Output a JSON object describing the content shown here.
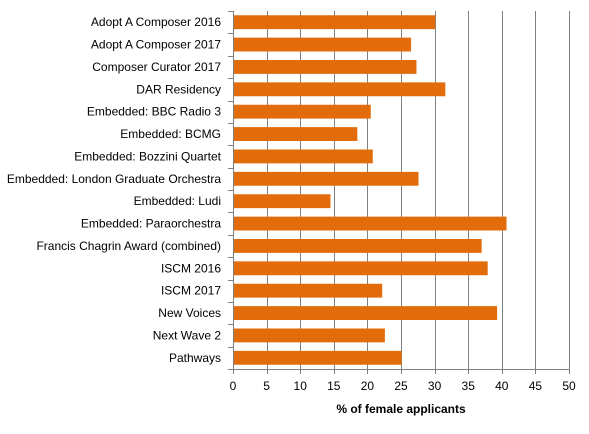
{
  "chart_data": {
    "type": "bar",
    "orientation": "horizontal",
    "categories": [
      "Adopt A Composer 2016",
      "Adopt A Composer 2017",
      "Composer Curator 2017",
      "DAR Residency",
      "Embedded: BBC Radio 3",
      "Embedded: BCMG",
      "Embedded: Bozzini Quartet",
      "Embedded: London Graduate Orchestra",
      "Embedded: Ludi",
      "Embedded: Paraorchestra",
      "Francis Chagrin Award (combined)",
      "ISCM 2016",
      "ISCM 2017",
      "New Voices",
      "Next Wave 2",
      "Pathways"
    ],
    "values": [
      30.1,
      26.5,
      27.3,
      31.6,
      20.5,
      18.5,
      20.8,
      27.6,
      14.5,
      40.7,
      37.0,
      37.9,
      22.2,
      39.3,
      22.6,
      25.1
    ],
    "xlabel": "% of female applicants",
    "ylabel": "",
    "xlim": [
      0,
      50
    ],
    "xticks": [
      0,
      5,
      10,
      15,
      20,
      25,
      30,
      35,
      40,
      45,
      50
    ],
    "grid": "vertical",
    "legend": "none"
  },
  "colors": {
    "bar": "#E36C0A",
    "grid": "#808080",
    "axis": "#808080",
    "text": "#000000"
  }
}
